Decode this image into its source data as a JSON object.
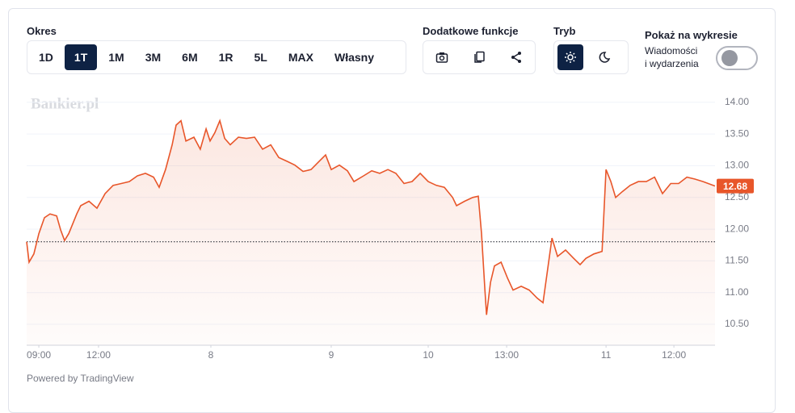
{
  "controls": {
    "period_label": "Okres",
    "periods": [
      "1D",
      "1T",
      "1M",
      "3M",
      "6M",
      "1R",
      "5L",
      "MAX",
      "Własny"
    ],
    "selected_period": "1T",
    "extra_label": "Dodatkowe funkcje",
    "mode_label": "Tryb",
    "show_label": "Pokaż na wykresie",
    "news_label_1": "Wiadomości",
    "news_label_2": "i wydarzenia"
  },
  "watermark": "Bankier.pl",
  "footer": "Powered by TradingView",
  "chart_data": {
    "type": "line",
    "color": "#e8562a",
    "grid": true,
    "x": [
      0,
      0.12,
      0.36,
      0.61,
      0.89,
      1.17,
      1.5,
      1.7,
      1.9,
      2.11,
      2.51,
      2.71,
      3.12,
      3.52,
      3.93,
      4.33,
      4.74,
      5.14,
      5.55,
      5.95,
      6.36,
      6.64,
      6.96,
      7.29,
      7.49,
      7.73,
      7.98,
      8.38,
      8.7,
      8.99,
      9.19,
      9.43,
      9.68,
      9.92,
      10.2,
      10.61,
      11.01,
      11.42,
      11.82,
      12.23,
      12.63,
      13.04,
      13.44,
      13.85,
      14.25,
      14.66,
      14.98,
      15.26,
      15.67,
      16.07,
      16.4,
      16.88,
      17.29,
      17.69,
      18.1,
      18.5,
      18.91,
      19.31,
      19.72,
      20.12,
      20.53,
      20.93,
      21.34,
      21.54,
      21.94,
      22.35,
      22.63,
      22.79,
      22.96,
      23.04,
      23.24,
      23.44,
      23.77,
      24.09,
      24.37,
      24.78,
      25.18,
      25.59,
      25.87,
      26.07,
      26.32,
      26.6,
      27.0,
      27.41,
      27.73,
      28.02,
      28.42,
      28.83,
      29.03,
      29.27,
      29.51,
      29.84,
      30.24,
      30.65,
      31.05,
      31.46,
      31.86,
      32.27,
      32.67,
      33.08,
      33.48,
      33.89,
      34.49
    ],
    "values": [
      11.8,
      11.48,
      11.61,
      11.93,
      12.18,
      12.24,
      12.21,
      11.99,
      11.82,
      11.93,
      12.24,
      12.37,
      12.44,
      12.33,
      12.56,
      12.69,
      12.72,
      12.75,
      12.84,
      12.88,
      12.82,
      12.66,
      12.94,
      13.33,
      13.64,
      13.71,
      13.39,
      13.45,
      13.26,
      13.58,
      13.39,
      13.52,
      13.71,
      13.43,
      13.33,
      13.45,
      13.43,
      13.45,
      13.26,
      13.33,
      13.13,
      13.07,
      13.01,
      12.91,
      12.94,
      13.07,
      13.17,
      12.94,
      13.01,
      12.92,
      12.75,
      12.84,
      12.92,
      12.88,
      12.94,
      12.88,
      12.72,
      12.75,
      12.88,
      12.75,
      12.69,
      12.66,
      12.5,
      12.37,
      12.44,
      12.5,
      12.52,
      11.93,
      11.04,
      10.65,
      11.16,
      11.42,
      11.48,
      11.23,
      11.04,
      11.1,
      11.04,
      10.91,
      10.84,
      11.29,
      11.86,
      11.57,
      11.67,
      11.54,
      11.44,
      11.54,
      11.61,
      11.65,
      12.94,
      12.75,
      12.5,
      12.59,
      12.69,
      12.75,
      12.75,
      12.82,
      12.56,
      12.72,
      12.72,
      12.82,
      12.79,
      12.75,
      12.68
    ],
    "xlim": [
      0,
      34.49
    ],
    "xticks": [
      {
        "value": 0.61,
        "label": "09:00"
      },
      {
        "value": 3.6,
        "label": "12:00"
      },
      {
        "value": 9.23,
        "label": "8"
      },
      {
        "value": 15.26,
        "label": "9"
      },
      {
        "value": 20.12,
        "label": "10"
      },
      {
        "value": 24.05,
        "label": "13:00"
      },
      {
        "value": 29.03,
        "label": "11"
      },
      {
        "value": 32.43,
        "label": "12:00"
      }
    ],
    "ylim": [
      10.17,
      14.15
    ],
    "yticks": [
      {
        "value": 10.5,
        "label": "10.50"
      },
      {
        "value": 11,
        "label": "11.00"
      },
      {
        "value": 11.5,
        "label": "11.50"
      },
      {
        "value": 12,
        "label": "12.00"
      },
      {
        "value": 12.5,
        "label": "12.50"
      },
      {
        "value": 13,
        "label": "13.00"
      },
      {
        "value": 13.5,
        "label": "13.50"
      },
      {
        "value": 14,
        "label": "14.00"
      }
    ],
    "reference_line": 11.8,
    "last_price": 12.68
  }
}
